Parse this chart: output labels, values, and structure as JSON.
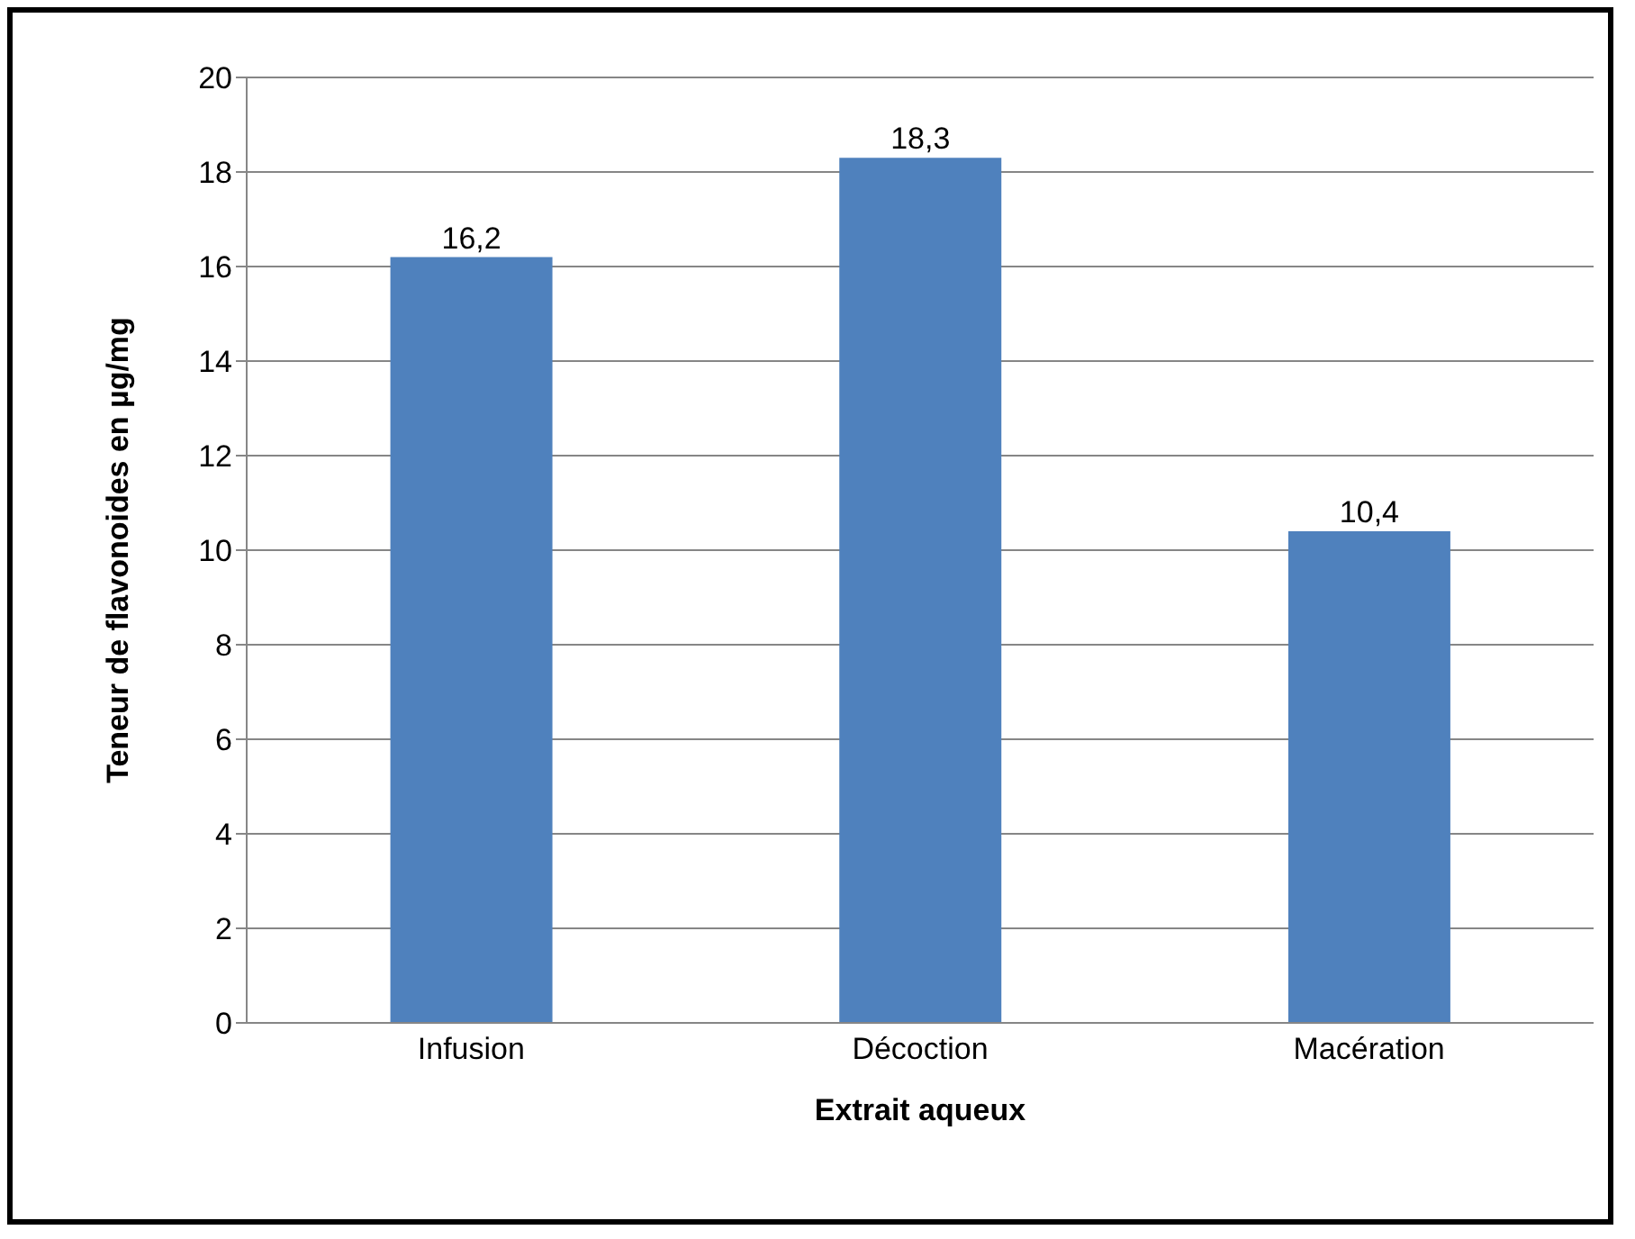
{
  "chart_data": {
    "type": "bar",
    "xlabel": "Extrait aqueux",
    "ylabel": "Teneur de flavonoides en µg/mg",
    "categories": [
      "Infusion",
      "Décoction",
      "Macération"
    ],
    "values": [
      16.2,
      18.3,
      10.4
    ],
    "value_labels": [
      "16,2",
      "18,3",
      "10,4"
    ],
    "color": "#4f81bd",
    "ylim": [
      0,
      20
    ],
    "yticks": [
      0,
      2,
      4,
      6,
      8,
      10,
      12,
      14,
      16,
      18,
      20
    ],
    "grid": "y",
    "legend": false
  }
}
